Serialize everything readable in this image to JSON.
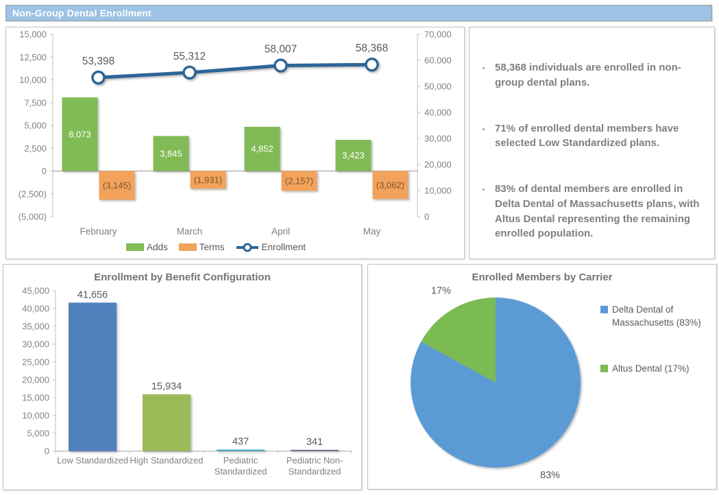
{
  "header": {
    "title": "Non-Group Dental Enrollment"
  },
  "colors": {
    "banner_bg": "#9CC2E5",
    "banner_text": "#FFFFFF",
    "axis_line": "#BFBFBF",
    "zero_line": "#A6A6A6",
    "axis_text": "#808080",
    "label_text": "#595959",
    "adds_green": "#81BB55",
    "terms_orange": "#F2A25B",
    "terms_label": "#7A5633",
    "enrollment_line": "#2D6596",
    "pie_blue": "#5B9BD5",
    "pie_green": "#7CBA52",
    "insight_text": "#7F7F7F"
  },
  "insights": {
    "bullets": [
      "58,368 individuals are enrolled in non-group dental plans.",
      "71% of enrolled dental members have selected Low Standardized plans.",
      "83% of dental members are enrolled in Delta Dental of Massachusetts plans, with Altus Dental representing the remaining enrolled population."
    ]
  },
  "chart_data": [
    {
      "id": "enrollment-trend",
      "type": "combo",
      "title": "",
      "categories": [
        "February",
        "March",
        "April",
        "May"
      ],
      "series": [
        {
          "name": "Adds",
          "kind": "bar",
          "axis": "left",
          "values": [
            8073,
            3845,
            4852,
            3423
          ],
          "labels": [
            "8,073",
            "3,845",
            "4,852",
            "3,423"
          ],
          "color": "#81BB55",
          "label_color": "#FFFFFF"
        },
        {
          "name": "Terms",
          "kind": "bar",
          "axis": "left",
          "values": [
            -3145,
            -1931,
            -2157,
            -3062
          ],
          "labels": [
            "(3,145)",
            "(1,931)",
            "(2,157)",
            "(3,062)"
          ],
          "color": "#F2A25B",
          "label_color": "#7A5633"
        },
        {
          "name": "Enrollment",
          "kind": "line",
          "axis": "right",
          "values": [
            53398,
            55312,
            58007,
            58368
          ],
          "labels": [
            "53,398",
            "55,312",
            "58,007",
            "58,368"
          ],
          "color": "#2D6596",
          "marker_fill": "#FFFFFF"
        }
      ],
      "left_axis": {
        "min": -5000,
        "max": 15000,
        "step": 2500,
        "ticks": [
          "15,000",
          "12,500",
          "10,000",
          "7,500",
          "5,000",
          "2,500",
          "0",
          "(2,500)",
          "(5,000)"
        ]
      },
      "right_axis": {
        "min": 0,
        "max": 70000,
        "step": 10000,
        "ticks": [
          "70,000",
          "60,000",
          "50,000",
          "40,000",
          "30,000",
          "20,000",
          "10,000",
          "0"
        ]
      },
      "grid": false,
      "legend_position": "bottom",
      "legend": [
        {
          "label": "Adds",
          "color": "#81BB55",
          "marker": "rect"
        },
        {
          "label": "Terms",
          "color": "#F2A25B",
          "marker": "rect"
        },
        {
          "label": "Enrollment",
          "color": "#2D6596",
          "marker": "line-circle"
        }
      ]
    },
    {
      "id": "benefit-config",
      "type": "bar",
      "title": "Enrollment by Benefit Configuration",
      "categories": [
        "Low Standardized",
        "High Standardized",
        "Pediatric Standardized",
        "Pediatric Non-Standardized"
      ],
      "xtick_lines": [
        [
          "Low Standardized"
        ],
        [
          "High Standardized"
        ],
        [
          "Pediatric",
          "Standardized"
        ],
        [
          "Pediatric Non-",
          "Standardized"
        ]
      ],
      "values": [
        41656,
        15934,
        437,
        341
      ],
      "labels": [
        "41,656",
        "15,934",
        "437",
        "341"
      ],
      "bar_colors": [
        "#4F81BD",
        "#9BBB59",
        "#4BACC6",
        "#716287"
      ],
      "ylim": [
        0,
        45000
      ],
      "step": 5000,
      "ticks": [
        "45,000",
        "40,000",
        "35,000",
        "30,000",
        "25,000",
        "20,000",
        "15,000",
        "10,000",
        "5,000",
        "0"
      ],
      "grid": false,
      "xlabel": "",
      "ylabel": ""
    },
    {
      "id": "carrier-pie",
      "type": "pie",
      "title": "Enrolled Members by Carrier",
      "slices": [
        {
          "label": "Delta Dental of Massachusetts (83%)",
          "value": 83,
          "pct_label": "83%",
          "color": "#5B9BD5"
        },
        {
          "label": "Altus Dental (17%)",
          "value": 17,
          "pct_label": "17%",
          "color": "#7CBA52"
        }
      ],
      "start_angle_deg_from_top": 0,
      "direction": "clockwise",
      "legend_position": "right"
    }
  ]
}
